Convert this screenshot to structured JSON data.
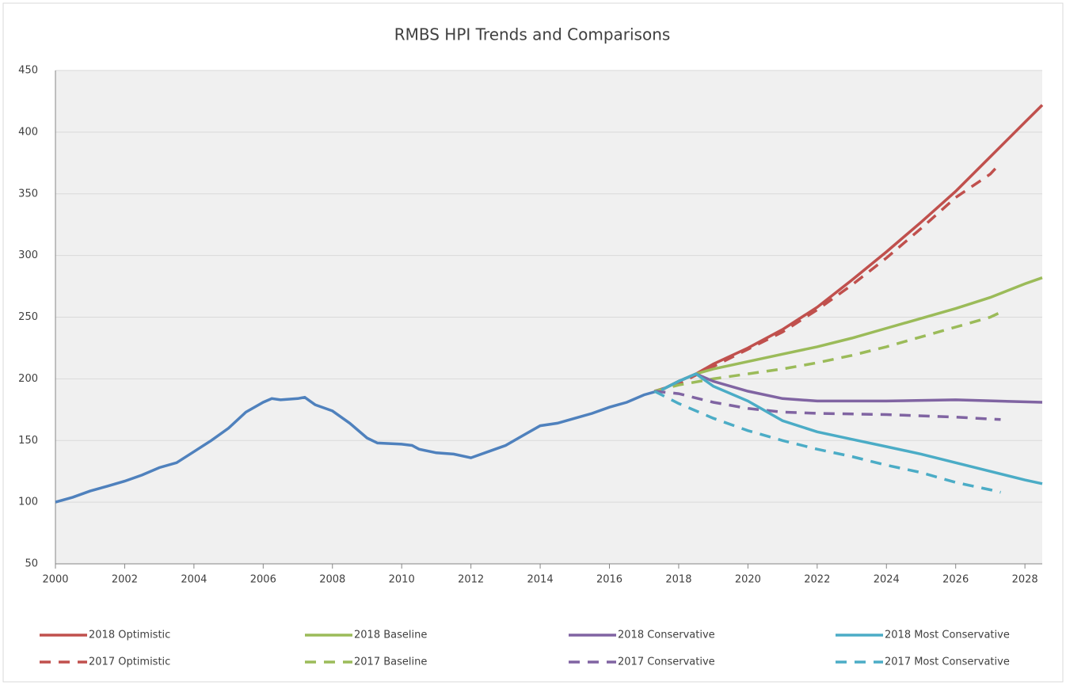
{
  "chart_data": {
    "type": "line",
    "title": "RMBS HPI Trends and Comparisons",
    "xlim": [
      2000,
      2028.5
    ],
    "xticks": [
      2000,
      2002,
      2004,
      2006,
      2008,
      2010,
      2012,
      2014,
      2016,
      2018,
      2020,
      2022,
      2024,
      2026,
      2028
    ],
    "ylim": [
      50,
      450
    ],
    "yticks": [
      50,
      100,
      150,
      200,
      250,
      300,
      350,
      400,
      450
    ],
    "grid": true,
    "legend": "bottom",
    "series": [
      {
        "color": "#4f81bd",
        "dashed": false,
        "x": [
          2000,
          2000.5,
          2001,
          2001.5,
          2002,
          2002.5,
          2003,
          2003.5,
          2004,
          2004.5,
          2005,
          2005.5,
          2006,
          2006.25,
          2006.5,
          2007,
          2007.2,
          2007.5,
          2008,
          2008.5,
          2009,
          2009.3,
          2010,
          2010.3,
          2010.5,
          2011,
          2011.5,
          2012,
          2012.5,
          2013,
          2013.5,
          2014,
          2014.5,
          2015,
          2015.5,
          2016,
          2016.5,
          2017,
          2017.5
        ],
        "values": [
          100,
          104,
          109,
          113,
          117,
          122,
          128,
          132,
          141,
          150,
          160,
          173,
          181,
          184,
          183,
          184,
          185,
          179,
          174,
          164,
          152,
          148,
          147,
          146,
          143,
          140,
          139,
          136,
          141,
          146,
          154,
          162,
          164,
          168,
          172,
          177,
          181,
          187,
          191
        ]
      },
      {
        "name": "2018 Optimistic",
        "color": "#c0504d",
        "dashed": false,
        "x": [
          2017.5,
          2018,
          2018.5,
          2019,
          2020,
          2021,
          2022,
          2023,
          2024,
          2025,
          2026,
          2027,
          2028,
          2028.5
        ],
        "values": [
          191,
          198,
          204,
          212,
          225,
          240,
          258,
          280,
          303,
          327,
          352,
          380,
          408,
          422
        ]
      },
      {
        "name": "2017 Optimistic",
        "color": "#c0504d",
        "dashed": true,
        "x": [
          2017.3,
          2018,
          2019,
          2020,
          2021,
          2022,
          2023,
          2024,
          2025,
          2026,
          2027,
          2027.3
        ],
        "values": [
          190,
          196,
          210,
          224,
          238,
          256,
          276,
          298,
          322,
          347,
          366,
          375
        ]
      },
      {
        "name": "2018 Baseline",
        "color": "#9bbb59",
        "dashed": false,
        "x": [
          2017.5,
          2018,
          2018.5,
          2019,
          2020,
          2021,
          2022,
          2023,
          2024,
          2025,
          2026,
          2027,
          2028,
          2028.5
        ],
        "values": [
          191,
          198,
          204,
          208,
          214,
          220,
          226,
          233,
          241,
          249,
          257,
          266,
          277,
          282
        ]
      },
      {
        "name": "2017 Baseline",
        "color": "#9bbb59",
        "dashed": true,
        "x": [
          2017.3,
          2018,
          2019,
          2020,
          2021,
          2022,
          2023,
          2024,
          2025,
          2026,
          2027,
          2027.3
        ],
        "values": [
          190,
          195,
          200,
          204,
          208,
          213,
          219,
          226,
          234,
          242,
          250,
          254
        ]
      },
      {
        "name": "2018 Conservative",
        "color": "#8064a2",
        "dashed": false,
        "x": [
          2017.5,
          2018,
          2018.5,
          2019,
          2020,
          2021,
          2022,
          2024,
          2026,
          2028.5
        ],
        "values": [
          191,
          198,
          204,
          198,
          190,
          184,
          182,
          182,
          183,
          181
        ]
      },
      {
        "name": "2017 Conservative",
        "color": "#8064a2",
        "dashed": true,
        "x": [
          2017.3,
          2018,
          2019,
          2020,
          2021,
          2022,
          2024,
          2026,
          2027.3
        ],
        "values": [
          190,
          188,
          181,
          176,
          173,
          172,
          171,
          169,
          167
        ]
      },
      {
        "name": "2018 Most Conservative",
        "color": "#4bacc6",
        "dashed": false,
        "x": [
          2017.5,
          2018,
          2018.5,
          2019,
          2020,
          2021,
          2022,
          2023,
          2024,
          2025,
          2026,
          2027,
          2028,
          2028.5
        ],
        "values": [
          191,
          198,
          204,
          194,
          182,
          166,
          157,
          151,
          145,
          139,
          132,
          125,
          118,
          115
        ]
      },
      {
        "name": "2017 Most Conservative",
        "color": "#4bacc6",
        "dashed": true,
        "x": [
          2017.3,
          2018,
          2019,
          2020,
          2021,
          2022,
          2023,
          2024,
          2025,
          2026,
          2027,
          2027.3
        ],
        "values": [
          190,
          180,
          168,
          158,
          150,
          143,
          137,
          130,
          124,
          116,
          110,
          108
        ]
      }
    ]
  }
}
